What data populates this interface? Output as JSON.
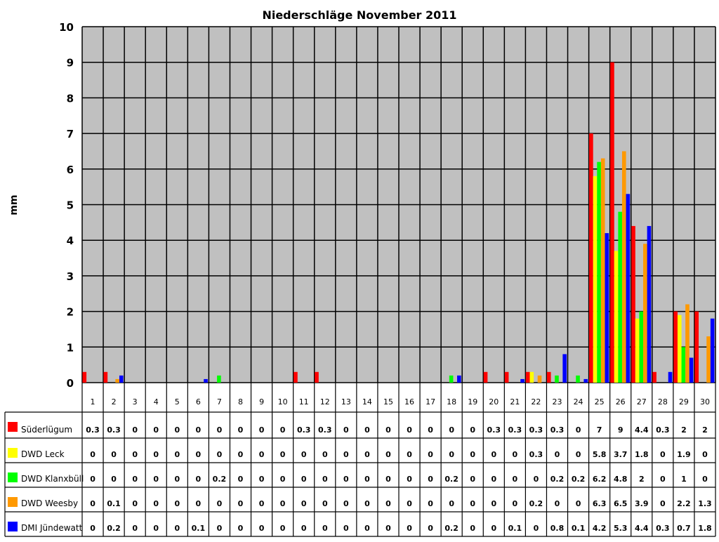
{
  "chart_data": {
    "type": "bar",
    "title": "Niederschläge November 2011",
    "ylabel": "mm",
    "xlabel": "",
    "ylim": [
      0,
      10
    ],
    "yticks": [
      "0",
      "1",
      "2",
      "3",
      "4",
      "5",
      "6",
      "7",
      "8",
      "9",
      "10"
    ],
    "grid": true,
    "legend_placement": "bottom-left (data table)",
    "categories": [
      "1",
      "2",
      "3",
      "4",
      "5",
      "6",
      "7",
      "8",
      "9",
      "10",
      "11",
      "12",
      "13",
      "14",
      "15",
      "16",
      "17",
      "18",
      "19",
      "20",
      "21",
      "22",
      "23",
      "24",
      "25",
      "26",
      "27",
      "28",
      "29",
      "30"
    ],
    "series": [
      {
        "name": "Süderlügum",
        "color": "#ff0000",
        "values": [
          0.3,
          0.3,
          0,
          0,
          0,
          0,
          0,
          0,
          0,
          0,
          0.3,
          0.3,
          0,
          0,
          0,
          0,
          0,
          0,
          0,
          0.3,
          0.3,
          0.3,
          0.3,
          0,
          7,
          9,
          4.4,
          0.3,
          2,
          2
        ]
      },
      {
        "name": "DWD Leck",
        "color": "#ffff00",
        "values": [
          0,
          0,
          0,
          0,
          0,
          0,
          0,
          0,
          0,
          0,
          0,
          0,
          0,
          0,
          0,
          0,
          0,
          0,
          0,
          0,
          0,
          0.3,
          0,
          0,
          5.8,
          3.7,
          1.8,
          0,
          1.9,
          0
        ]
      },
      {
        "name": "DWD Klanxbüll",
        "color": "#00ff00",
        "values": [
          0,
          0,
          0,
          0,
          0,
          0,
          0.2,
          0,
          0,
          0,
          0,
          0,
          0,
          0,
          0,
          0,
          0,
          0.2,
          0,
          0,
          0,
          0,
          0.2,
          0.2,
          6.2,
          4.8,
          2,
          0,
          1,
          0
        ]
      },
      {
        "name": "DWD Weesby",
        "color": "#ff9900",
        "values": [
          0,
          0.1,
          0,
          0,
          0,
          0,
          0,
          0,
          0,
          0,
          0,
          0,
          0,
          0,
          0,
          0,
          0,
          0,
          0,
          0,
          0,
          0.2,
          0,
          0,
          6.3,
          6.5,
          3.9,
          0,
          2.2,
          1.3
        ]
      },
      {
        "name": "DMI Jündewatt",
        "color": "#0000ff",
        "values": [
          0,
          0.2,
          0,
          0,
          0,
          0.1,
          0,
          0,
          0,
          0,
          0,
          0,
          0,
          0,
          0,
          0,
          0,
          0.2,
          0,
          0,
          0.1,
          0,
          0.8,
          0.1,
          4.2,
          5.3,
          4.4,
          0.3,
          0.7,
          1.8
        ]
      }
    ]
  }
}
